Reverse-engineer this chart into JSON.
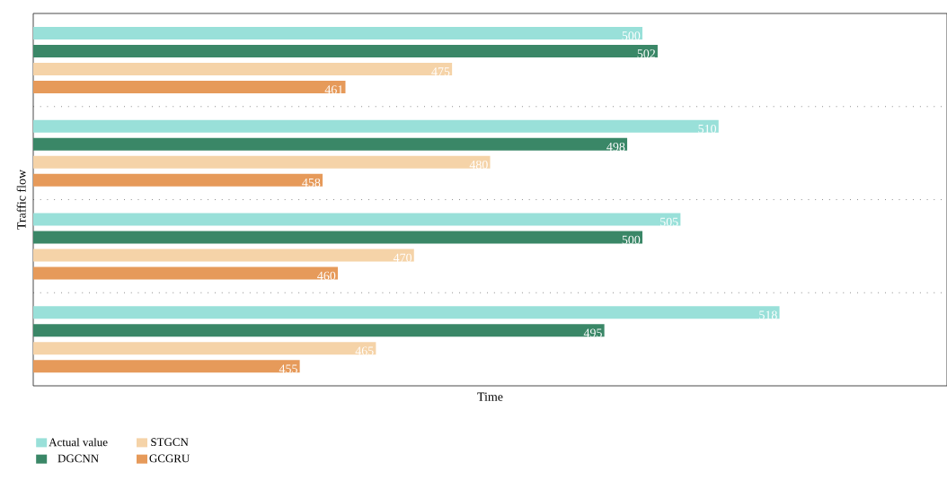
{
  "chart_data": {
    "type": "bar",
    "orientation": "horizontal",
    "xlabel": "Time",
    "ylabel": "Traffic flow",
    "categories": [
      null,
      null,
      null,
      null
    ],
    "series": [
      {
        "name": "Actual value",
        "color": "#99e0d9",
        "values": [
          500,
          510,
          505,
          518
        ]
      },
      {
        "name": "DGCNN",
        "color": "#3a8767",
        "values": [
          502,
          498,
          500,
          495
        ]
      },
      {
        "name": "STGCN",
        "color": "#f5d3a8",
        "values": [
          475,
          480,
          470,
          465
        ]
      },
      {
        "name": "GCGRU",
        "color": "#e69a5a",
        "values": [
          461,
          458,
          460,
          455
        ]
      }
    ],
    "xlim": [
      420,
      540
    ],
    "data_labels": true,
    "tick_labels": false,
    "grid": "y",
    "legend": "bottom"
  }
}
